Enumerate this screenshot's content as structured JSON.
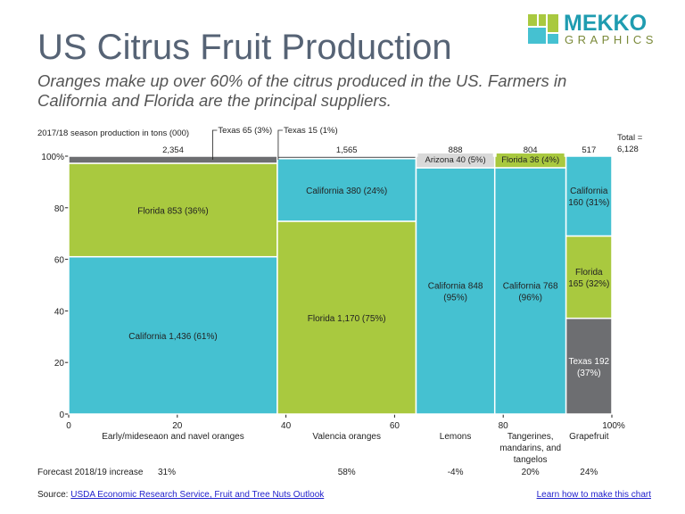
{
  "title": "US Citrus Fruit Production",
  "subtitle": "Oranges make up over 60% of the citrus produced in the US. Farmers in California and Florida are the principal suppliers.",
  "logo": {
    "word1": "MEKKO",
    "word2": "GRAPHICS"
  },
  "colors": {
    "California": "#45c1d1",
    "Florida": "#a9c93f",
    "Texas": "#6d6e71",
    "Arizona": "#d9d9d9"
  },
  "chart_data": {
    "type": "marimekko",
    "unit_label": "2017/18 season production in tons (000)",
    "total_label": "Total =\n6,128",
    "total": 6128,
    "yticks": [
      "0",
      "20",
      "40",
      "60",
      "80",
      "100%"
    ],
    "xticks": [
      "0",
      "20",
      "40",
      "60",
      "80",
      "100%"
    ],
    "columns": [
      {
        "name": "Early/mideseaon and navel oranges",
        "total": 2354,
        "total_label": "2,354",
        "forecast": "31%",
        "segments": [
          {
            "series": "California",
            "value": 1436,
            "label": "California 1,436 (61%)"
          },
          {
            "series": "Florida",
            "value": 853,
            "label": "Florida 853 (36%)"
          },
          {
            "series": "Texas",
            "value": 65,
            "label": "Texas 65 (3%)",
            "callout": true
          }
        ]
      },
      {
        "name": "Valencia oranges",
        "total": 1565,
        "total_label": "1,565",
        "forecast": "58%",
        "segments": [
          {
            "series": "Florida",
            "value": 1170,
            "label": "Florida 1,170 (75%)"
          },
          {
            "series": "California",
            "value": 380,
            "label": "California 380 (24%)"
          },
          {
            "series": "Texas",
            "value": 15,
            "label": "Texas 15 (1%)",
            "callout": true
          }
        ]
      },
      {
        "name": "Lemons",
        "total": 888,
        "total_label": "888",
        "forecast": "-4%",
        "segments": [
          {
            "series": "California",
            "value": 848,
            "label": "California 848\n(95%)"
          },
          {
            "series": "Arizona",
            "value": 40,
            "label": "Arizona 40 (5%)",
            "boxed": true
          }
        ]
      },
      {
        "name": "Tangerines,\nmandarins, and\ntangelos",
        "total": 804,
        "total_label": "804",
        "forecast": "20%",
        "segments": [
          {
            "series": "California",
            "value": 768,
            "label": "California 768\n(96%)"
          },
          {
            "series": "Florida",
            "value": 36,
            "label": "Florida 36 (4%)",
            "boxed": true
          }
        ]
      },
      {
        "name": "Grapefruit",
        "total": 517,
        "total_label": "517",
        "forecast": "24%",
        "segments": [
          {
            "series": "Texas",
            "value": 192,
            "label": "Texas 192\n(37%)"
          },
          {
            "series": "Florida",
            "value": 165,
            "label": "Florida\n165 (32%)"
          },
          {
            "series": "California",
            "value": 160,
            "label": "California\n160 (31%)"
          }
        ]
      }
    ],
    "forecast_label": "Forecast 2018/19 increase"
  },
  "footer": {
    "source_prefix": "Source: ",
    "source_link": "USDA Economic Research Service, Fruit and Tree Nuts Outlook",
    "learn_link": "Learn how to make this chart"
  }
}
